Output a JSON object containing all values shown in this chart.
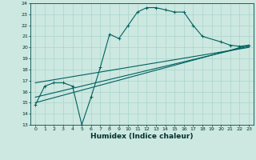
{
  "xlabel": "Humidex (Indice chaleur)",
  "xlim": [
    -0.5,
    23.5
  ],
  "ylim": [
    13,
    24
  ],
  "xticks": [
    0,
    1,
    2,
    3,
    4,
    5,
    6,
    7,
    8,
    9,
    10,
    11,
    12,
    13,
    14,
    15,
    16,
    17,
    18,
    19,
    20,
    21,
    22,
    23
  ],
  "yticks": [
    13,
    14,
    15,
    16,
    17,
    18,
    19,
    20,
    21,
    22,
    23,
    24
  ],
  "bg_color": "#cce8e0",
  "grid_color": "#aad4cc",
  "line_color": "#006060",
  "lines": [
    {
      "x": [
        0,
        1,
        2,
        3,
        4,
        5,
        6,
        7,
        8,
        9,
        10,
        11,
        12,
        13,
        14,
        15,
        16,
        17,
        18,
        20,
        21,
        22,
        23
      ],
      "y": [
        14.8,
        16.5,
        16.8,
        16.8,
        16.5,
        13.0,
        15.5,
        18.2,
        21.2,
        20.8,
        22.0,
        23.2,
        23.6,
        23.6,
        23.4,
        23.2,
        23.2,
        22.0,
        21.0,
        20.5,
        20.2,
        20.1,
        20.2
      ],
      "marker": true,
      "marker_style": "+"
    },
    {
      "x": [
        0,
        23
      ],
      "y": [
        15.0,
        20.2
      ],
      "marker": false
    },
    {
      "x": [
        0,
        23
      ],
      "y": [
        15.5,
        20.1
      ],
      "marker": false
    },
    {
      "x": [
        0,
        23
      ],
      "y": [
        16.8,
        20.0
      ],
      "marker": false
    }
  ]
}
